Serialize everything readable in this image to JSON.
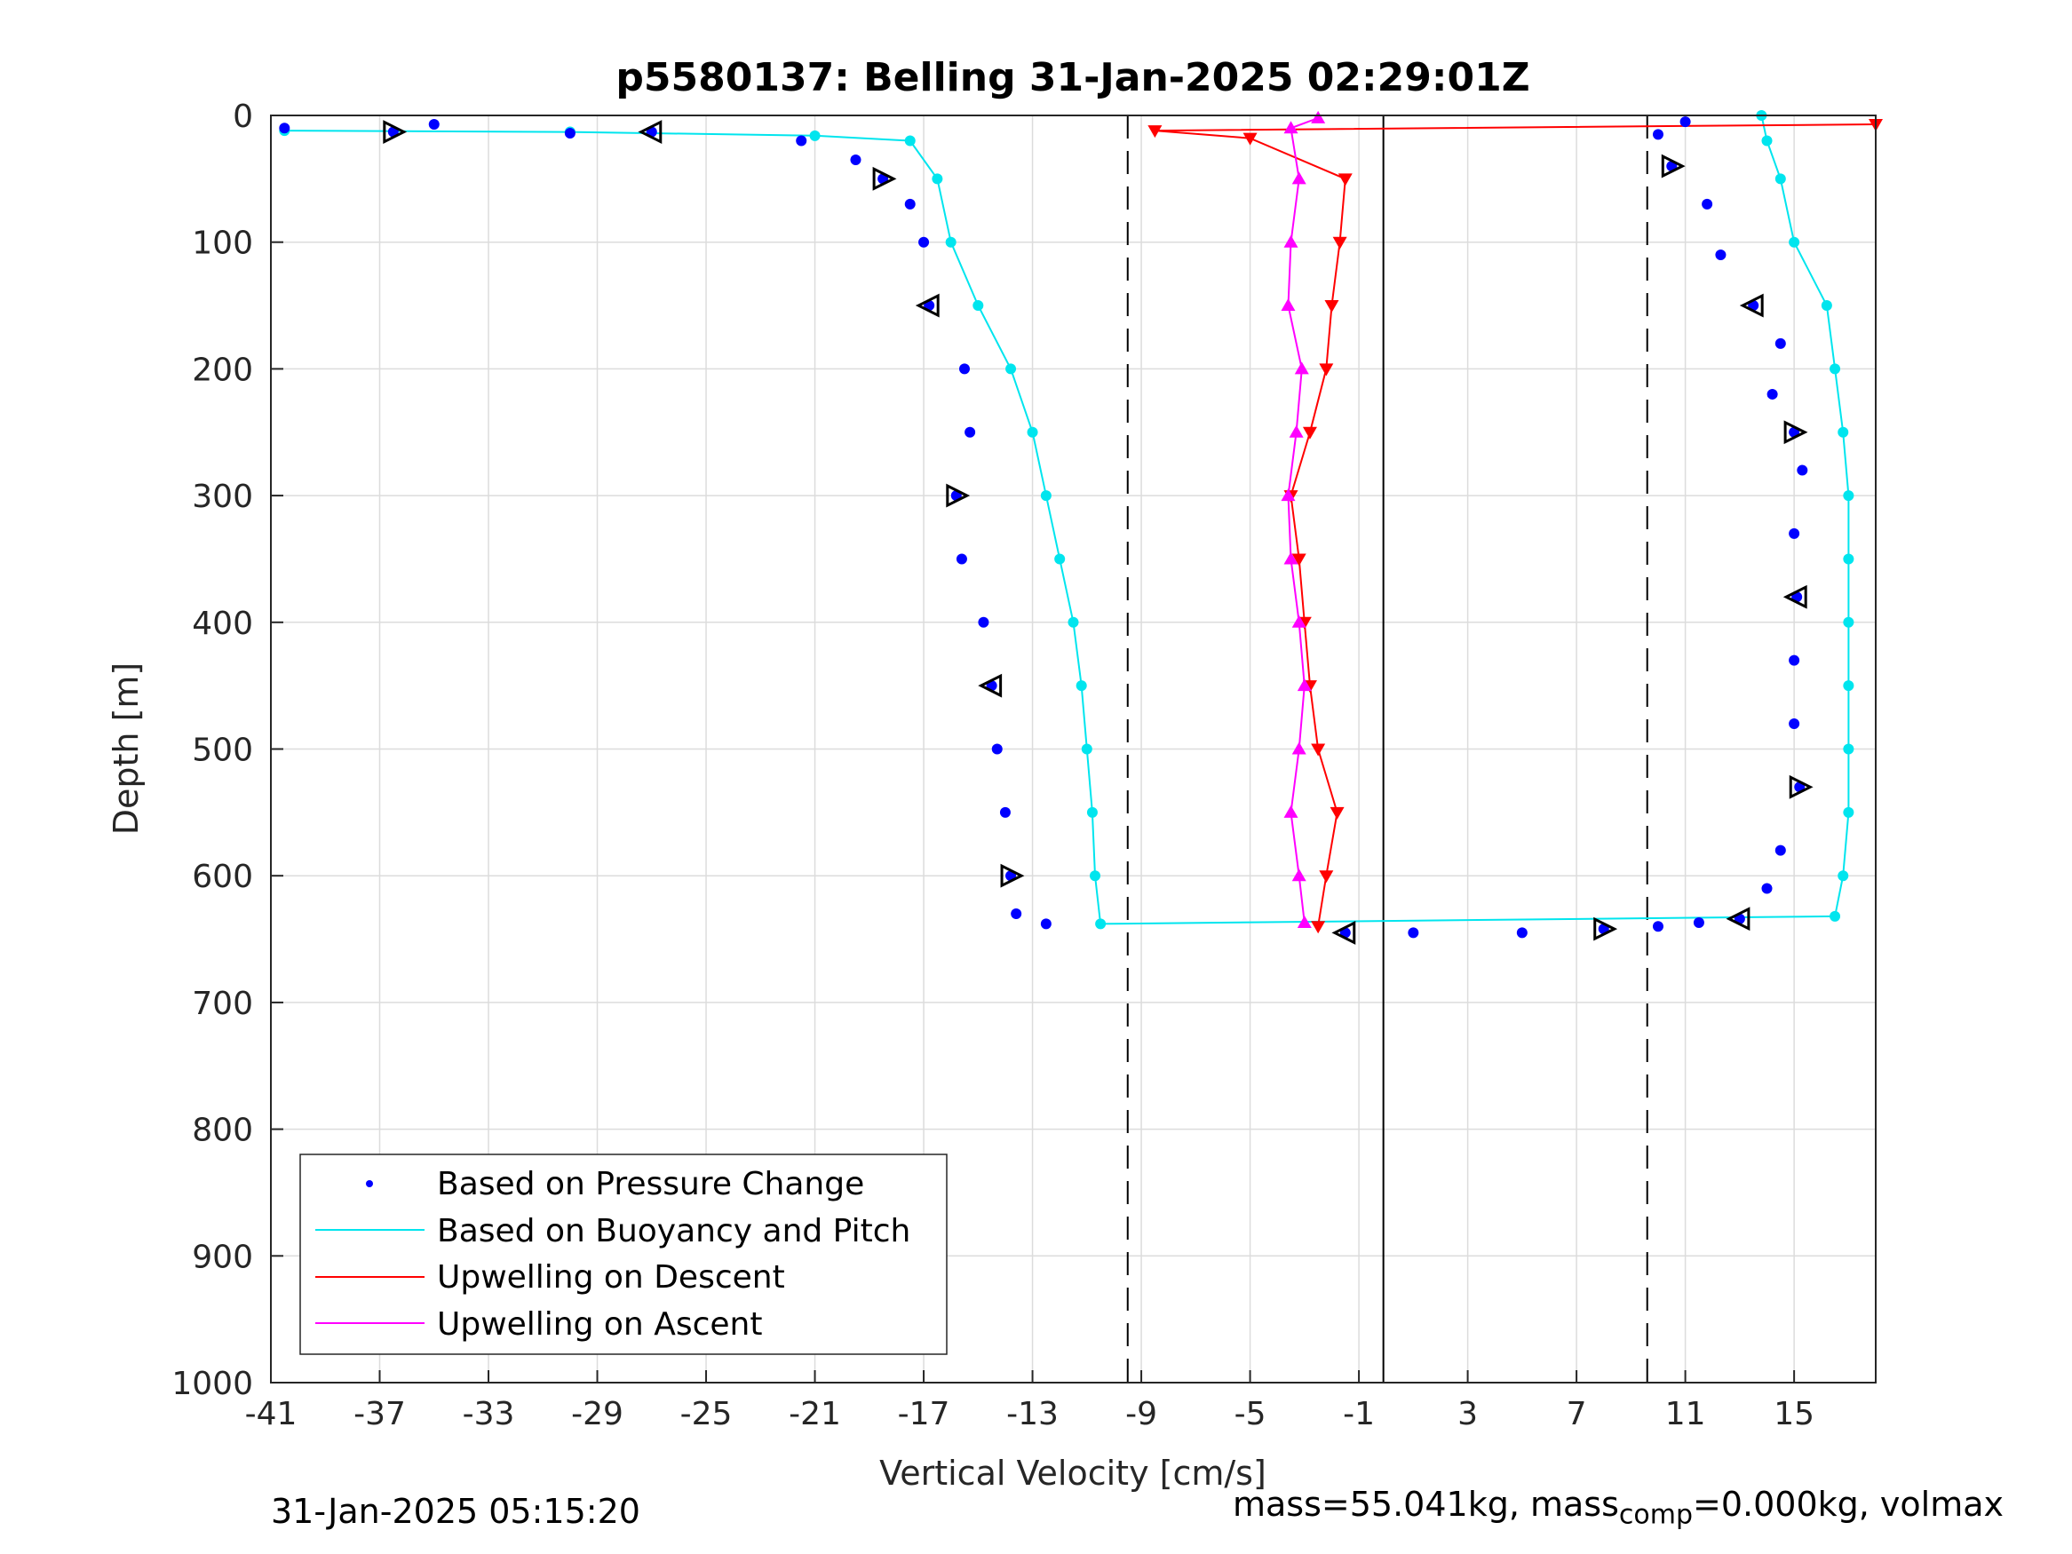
{
  "chart_data": {
    "type": "scatter",
    "title": "p5580137: Belling 31-Jan-2025 02:29:01Z",
    "xlabel": "Vertical Velocity [cm/s]",
    "ylabel": "Depth [m]",
    "xlim": [
      -41,
      18
    ],
    "ylim": [
      0,
      1000
    ],
    "y_reversed": true,
    "grid": true,
    "legend_position": "bottom-left",
    "xticks": [
      "-41",
      "-37",
      "-33",
      "-29",
      "-25",
      "-21",
      "-17",
      "-13",
      "-9",
      "-5",
      "-1",
      "3",
      "7",
      "11",
      "15"
    ],
    "yticks": [
      "0",
      "100",
      "200",
      "300",
      "400",
      "500",
      "600",
      "700",
      "800",
      "900",
      "1000"
    ],
    "reference_lines": {
      "dashed_x": [
        -9.5,
        9.6
      ],
      "solid_x": [
        -0.1
      ]
    },
    "series": [
      {
        "name": "Based on Pressure Change",
        "color": "#0000ff",
        "points_descent": [
          [
            -40.5,
            10
          ],
          [
            -36.5,
            13
          ],
          [
            -35,
            7
          ],
          [
            -30,
            14
          ],
          [
            -27,
            13
          ],
          [
            -21.5,
            20
          ],
          [
            -19.5,
            35
          ],
          [
            -18.5,
            50
          ],
          [
            -17.5,
            70
          ],
          [
            -17,
            100
          ],
          [
            -16.8,
            150
          ],
          [
            -15.5,
            200
          ],
          [
            -15.3,
            250
          ],
          [
            -15.8,
            300
          ],
          [
            -15.6,
            350
          ],
          [
            -14.8,
            400
          ],
          [
            -14.5,
            450
          ],
          [
            -14.3,
            500
          ],
          [
            -14,
            550
          ],
          [
            -13.8,
            600
          ],
          [
            -13.6,
            630
          ],
          [
            -12.5,
            638
          ]
        ],
        "points_ascent": [
          [
            -1.5,
            645
          ],
          [
            1,
            645
          ],
          [
            5,
            645
          ],
          [
            8,
            642
          ],
          [
            10,
            640
          ],
          [
            11.5,
            637
          ],
          [
            13,
            634
          ],
          [
            14,
            610
          ],
          [
            14.5,
            580
          ],
          [
            15.2,
            530
          ],
          [
            15,
            480
          ],
          [
            15,
            430
          ],
          [
            15.1,
            380
          ],
          [
            15,
            330
          ],
          [
            15.3,
            280
          ],
          [
            15,
            250
          ],
          [
            14.2,
            220
          ],
          [
            14.5,
            180
          ],
          [
            13.5,
            150
          ],
          [
            12.3,
            110
          ],
          [
            11.8,
            70
          ],
          [
            10.5,
            40
          ],
          [
            10,
            15
          ],
          [
            11,
            5
          ]
        ]
      },
      {
        "name": "Based on Buoyancy and Pitch",
        "color": "#00e5ee",
        "points_descent": [
          [
            -40.5,
            12
          ],
          [
            -30,
            13
          ],
          [
            -21,
            16
          ],
          [
            -17.5,
            20
          ],
          [
            -16.5,
            50
          ],
          [
            -16,
            100
          ],
          [
            -15,
            150
          ],
          [
            -13.8,
            200
          ],
          [
            -13,
            250
          ],
          [
            -12.5,
            300
          ],
          [
            -12,
            350
          ],
          [
            -11.5,
            400
          ],
          [
            -11.2,
            450
          ],
          [
            -11,
            500
          ],
          [
            -10.8,
            550
          ],
          [
            -10.7,
            600
          ],
          [
            -10.5,
            638
          ]
        ],
        "points_ascent": [
          [
            16.5,
            632
          ],
          [
            16.8,
            600
          ],
          [
            17,
            550
          ],
          [
            17,
            500
          ],
          [
            17,
            450
          ],
          [
            17,
            400
          ],
          [
            17,
            350
          ],
          [
            17,
            300
          ],
          [
            16.8,
            250
          ],
          [
            16.5,
            200
          ],
          [
            16.2,
            150
          ],
          [
            15,
            100
          ],
          [
            14.5,
            50
          ],
          [
            14,
            20
          ],
          [
            13.8,
            0
          ]
        ]
      },
      {
        "name": "Upwelling on Descent",
        "color": "#ff0000",
        "points": [
          [
            18,
            7
          ],
          [
            -8.5,
            12
          ],
          [
            -5,
            18
          ],
          [
            -1.5,
            50
          ],
          [
            -1.7,
            100
          ],
          [
            -2,
            150
          ],
          [
            -2.2,
            200
          ],
          [
            -2.8,
            250
          ],
          [
            -3.5,
            300
          ],
          [
            -3.2,
            350
          ],
          [
            -3,
            400
          ],
          [
            -2.8,
            450
          ],
          [
            -2.5,
            500
          ],
          [
            -1.8,
            550
          ],
          [
            -2.2,
            600
          ],
          [
            -2.5,
            640
          ]
        ]
      },
      {
        "name": "Upwelling on Ascent",
        "color": "#ff00ff",
        "points": [
          [
            -3,
            637
          ],
          [
            -3.2,
            600
          ],
          [
            -3.5,
            550
          ],
          [
            -3.2,
            500
          ],
          [
            -3,
            450
          ],
          [
            -3.2,
            400
          ],
          [
            -3.5,
            350
          ],
          [
            -3.6,
            300
          ],
          [
            -3.3,
            250
          ],
          [
            -3.1,
            200
          ],
          [
            -3.6,
            150
          ],
          [
            -3.5,
            100
          ],
          [
            -3.2,
            50
          ],
          [
            -3.5,
            10
          ],
          [
            -2.5,
            2
          ]
        ]
      }
    ]
  },
  "footer": {
    "date_left": "31-Jan-2025 05:15:20",
    "mass_text": "mass=55.041kg, mass",
    "mass_sub": "comp",
    "mass_rest": "=0.000kg, volmax"
  }
}
